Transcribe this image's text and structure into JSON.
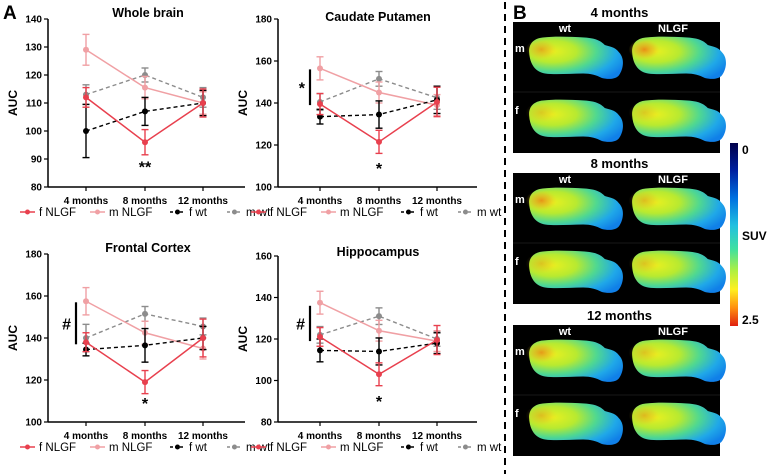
{
  "panel_a_label": "A",
  "panel_b_label": "B",
  "chart_data": [
    {
      "type": "line",
      "title": "Whole brain",
      "xlabel": "",
      "ylabel": "AUC",
      "categories": [
        "4 months",
        "8 months",
        "12 months"
      ],
      "ylim": [
        80,
        140
      ],
      "yticks": [
        80,
        90,
        100,
        110,
        120,
        130,
        140
      ],
      "series": [
        {
          "name": "f NLGF",
          "values": [
            112,
            96,
            110
          ],
          "errors": [
            3.5,
            4.5,
            5
          ],
          "color": "#e8404e",
          "dashed": false
        },
        {
          "name": "m NLGF",
          "values": [
            129,
            115.5,
            110
          ],
          "errors": [
            5.5,
            4,
            4
          ],
          "color": "#f0a0a4",
          "dashed": false
        },
        {
          "name": "f wt",
          "values": [
            100,
            107,
            110
          ],
          "errors": [
            9.5,
            5,
            4.5
          ],
          "color": "#000000",
          "dashed": true
        },
        {
          "name": "m wt",
          "values": [
            113,
            120,
            112
          ],
          "errors": [
            3.5,
            2.5,
            3.5
          ],
          "color": "#8c8c8c",
          "dashed": true
        }
      ],
      "annotations": [
        {
          "text": "**",
          "category": "8 months",
          "y": 88
        }
      ],
      "group_bracket": null,
      "legend": "bottom"
    },
    {
      "type": "line",
      "title": "Caudate Putamen",
      "xlabel": "",
      "ylabel": "AUC",
      "categories": [
        "4 months",
        "8 months",
        "12 months"
      ],
      "ylim": [
        100,
        180
      ],
      "yticks": [
        100,
        120,
        140,
        160,
        180
      ],
      "series": [
        {
          "name": "f NLGF",
          "values": [
            139.5,
            121.5,
            140.5
          ],
          "errors": [
            5,
            5.5,
            7
          ],
          "color": "#e8404e",
          "dashed": false
        },
        {
          "name": "m NLGF",
          "values": [
            156.5,
            145,
            139
          ],
          "errors": [
            5.5,
            5,
            5
          ],
          "color": "#f0a0a4",
          "dashed": false
        },
        {
          "name": "f wt",
          "values": [
            133.5,
            134.5,
            141.5
          ],
          "errors": [
            3.5,
            6.5,
            6.5
          ],
          "color": "#000000",
          "dashed": true
        },
        {
          "name": "m wt",
          "values": [
            140.5,
            151.5,
            142.5
          ],
          "errors": [
            4,
            3.5,
            5.5
          ],
          "color": "#8c8c8c",
          "dashed": true
        }
      ],
      "annotations": [
        {
          "text": "*",
          "category": "8 months",
          "y": 110
        }
      ],
      "group_bracket": {
        "text": "*",
        "from": 139,
        "to": 156
      },
      "legend": "bottom"
    },
    {
      "type": "line",
      "title": "Frontal Cortex",
      "xlabel": "",
      "ylabel": "AUC",
      "categories": [
        "4 months",
        "8 months",
        "12 months"
      ],
      "ylim": [
        100,
        180
      ],
      "yticks": [
        100,
        120,
        140,
        160,
        180
      ],
      "series": [
        {
          "name": "f NLGF",
          "values": [
            138,
            119,
            140
          ],
          "errors": [
            4.5,
            5.5,
            9
          ],
          "color": "#e8404e",
          "dashed": false
        },
        {
          "name": "m NLGF",
          "values": [
            157.5,
            142.5,
            135
          ],
          "errors": [
            6.5,
            5.5,
            5
          ],
          "color": "#f0a0a4",
          "dashed": false
        },
        {
          "name": "f wt",
          "values": [
            134.5,
            136.5,
            140
          ],
          "errors": [
            3,
            8,
            5.5
          ],
          "color": "#000000",
          "dashed": true
        },
        {
          "name": "m wt",
          "values": [
            140,
            151.5,
            145.5
          ],
          "errors": [
            6.5,
            3.5,
            4
          ],
          "color": "#8c8c8c",
          "dashed": true
        }
      ],
      "annotations": [
        {
          "text": "*",
          "category": "8 months",
          "y": 110
        }
      ],
      "group_bracket": {
        "text": "#",
        "from": 137,
        "to": 157
      },
      "legend": "bottom"
    },
    {
      "type": "line",
      "title": "Hippocampus",
      "xlabel": "",
      "ylabel": "AUC",
      "categories": [
        "4 months",
        "8 months",
        "12 months"
      ],
      "ylim": [
        80,
        160
      ],
      "yticks": [
        80,
        100,
        120,
        140,
        160
      ],
      "series": [
        {
          "name": "f NLGF",
          "values": [
            121,
            103,
            119.5
          ],
          "errors": [
            4.5,
            5.5,
            7
          ],
          "color": "#e8404e",
          "dashed": false
        },
        {
          "name": "m NLGF",
          "values": [
            137.5,
            124,
            119
          ],
          "errors": [
            5.5,
            5,
            5
          ],
          "color": "#f0a0a4",
          "dashed": false
        },
        {
          "name": "f wt",
          "values": [
            114.5,
            114,
            118
          ],
          "errors": [
            5.5,
            6.5,
            5
          ],
          "color": "#000000",
          "dashed": true
        },
        {
          "name": "m wt",
          "values": [
            122,
            131,
            120
          ],
          "errors": [
            4,
            4,
            3.5
          ],
          "color": "#8c8c8c",
          "dashed": true
        }
      ],
      "annotations": [
        {
          "text": "*",
          "category": "8 months",
          "y": 91
        }
      ],
      "group_bracket": {
        "text": "#",
        "from": 119,
        "to": 136
      },
      "legend": "bottom"
    }
  ],
  "panel_b": {
    "rows": [
      {
        "title": "4 months",
        "col_labels": [
          "wt",
          "NLGF"
        ],
        "row_labels": [
          "m",
          "f"
        ],
        "hot_spots": [
          [
            0.55,
            0.8
          ],
          [
            0.3,
            0.3
          ]
        ]
      },
      {
        "title": "8 months",
        "col_labels": [
          "wt",
          "NLGF"
        ],
        "row_labels": [
          "m",
          "f"
        ],
        "hot_spots": [
          [
            0.75,
            0.4
          ],
          [
            0.35,
            0.35
          ]
        ]
      },
      {
        "title": "12 months",
        "col_labels": [
          "wt",
          "NLGF"
        ],
        "row_labels": [
          "m",
          "f"
        ],
        "hot_spots": [
          [
            0.7,
            0.35
          ],
          [
            0.4,
            0.45
          ]
        ]
      }
    ],
    "colorbar": {
      "label": "SUV",
      "min_label": "0",
      "max_label": "2.5",
      "colormap": "jet"
    }
  }
}
